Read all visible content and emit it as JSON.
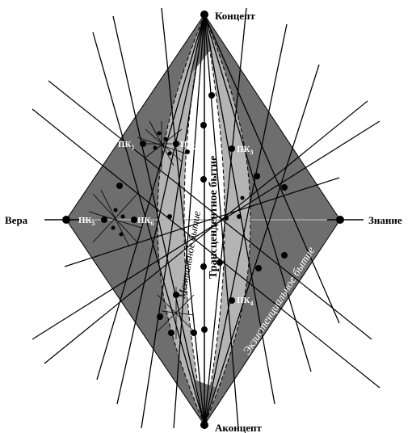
{
  "poles": {
    "top": "Концепт",
    "bottom": "Аконцепт",
    "left": "Вера",
    "right": "Знание"
  },
  "points": {
    "pk1": "ПК",
    "pk1_sub": "1",
    "pk2": "ПК",
    "pk2_sub": "2",
    "pk3": "ПК",
    "pk3_sub": "3",
    "pk4": "ПК",
    "pk4_sub": "4",
    "pk5": "ПК",
    "pk5_sub": "5",
    "pk6": "ПК",
    "pk6_sub": "6"
  },
  "regions": {
    "transcendent": "Трансцендентное бытие",
    "mental": "Ментальное бытие",
    "existential": "Экзистенциальное бытие"
  },
  "colors": {
    "outer_fill": "#6e6e6e",
    "lens_fill": "#b4b4b4",
    "core_fill": "#ffffff"
  }
}
